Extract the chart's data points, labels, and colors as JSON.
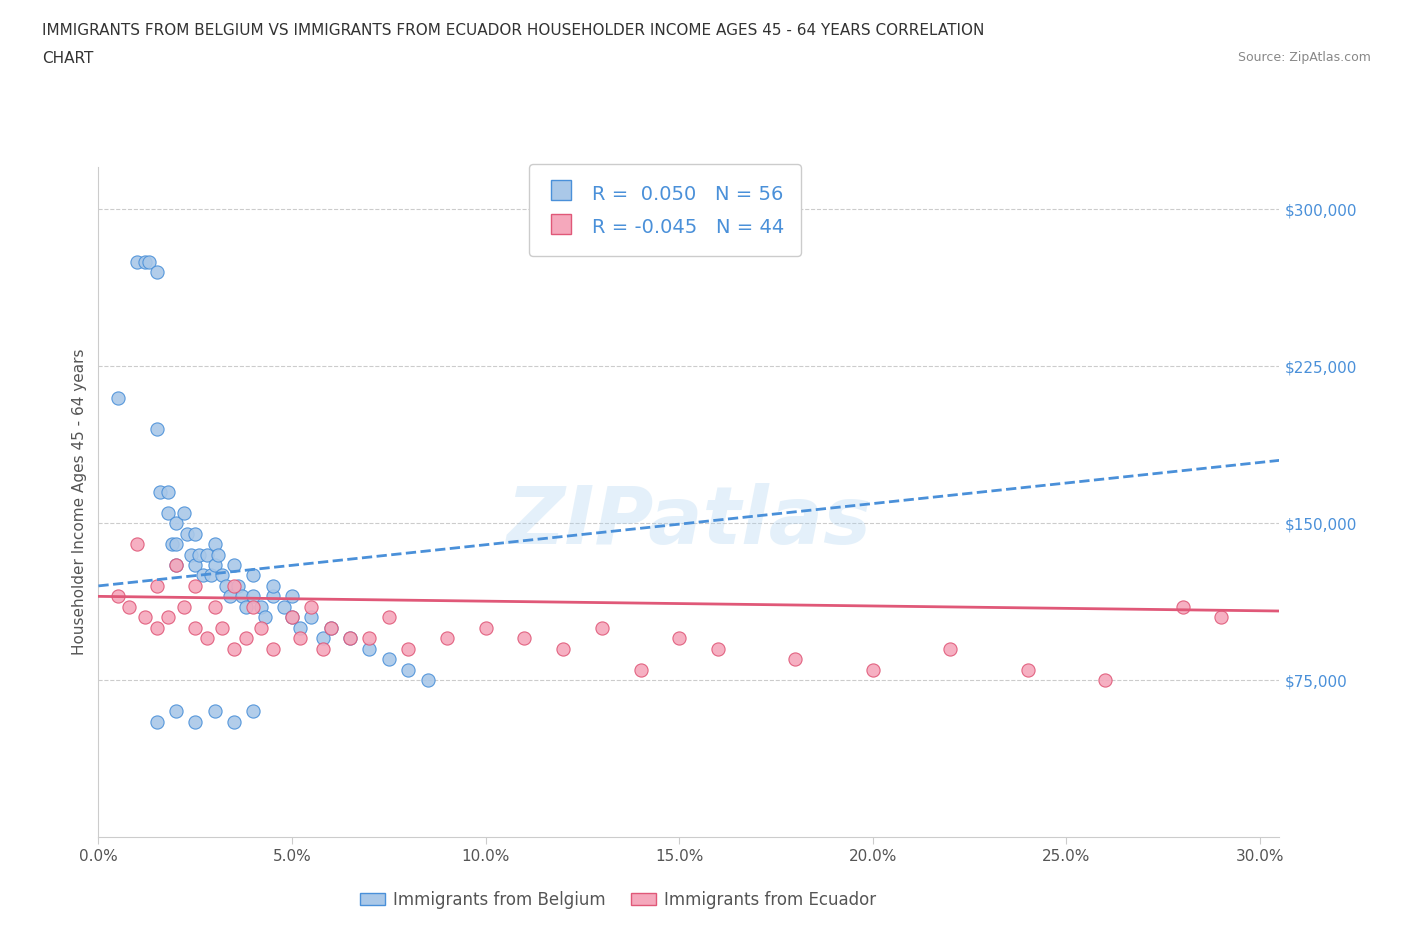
{
  "title_line1": "IMMIGRANTS FROM BELGIUM VS IMMIGRANTS FROM ECUADOR HOUSEHOLDER INCOME AGES 45 - 64 YEARS CORRELATION",
  "title_line2": "CHART",
  "source_text": "Source: ZipAtlas.com",
  "ylabel": "Householder Income Ages 45 - 64 years",
  "xlim": [
    0.0,
    0.305
  ],
  "ylim": [
    0,
    320000
  ],
  "xtick_labels": [
    "0.0%",
    "5.0%",
    "10.0%",
    "15.0%",
    "20.0%",
    "25.0%",
    "30.0%"
  ],
  "xtick_values": [
    0.0,
    0.05,
    0.1,
    0.15,
    0.2,
    0.25,
    0.3
  ],
  "ytick_labels": [
    "$75,000",
    "$150,000",
    "$225,000",
    "$300,000"
  ],
  "ytick_values": [
    75000,
    150000,
    225000,
    300000
  ],
  "r_belgium": 0.05,
  "n_belgium": 56,
  "r_ecuador": -0.045,
  "n_ecuador": 44,
  "color_belgium": "#aac8e8",
  "color_ecuador": "#f5a8bc",
  "line_color_belgium": "#4a90d9",
  "line_color_ecuador": "#e05878",
  "background_color": "#ffffff",
  "grid_color": "#cccccc",
  "belgium_x": [
    0.005,
    0.01,
    0.012,
    0.013,
    0.015,
    0.015,
    0.016,
    0.018,
    0.018,
    0.019,
    0.02,
    0.02,
    0.02,
    0.022,
    0.023,
    0.024,
    0.025,
    0.025,
    0.026,
    0.027,
    0.028,
    0.029,
    0.03,
    0.03,
    0.031,
    0.032,
    0.033,
    0.034,
    0.035,
    0.036,
    0.037,
    0.038,
    0.04,
    0.04,
    0.042,
    0.043,
    0.045,
    0.045,
    0.048,
    0.05,
    0.05,
    0.052,
    0.055,
    0.058,
    0.06,
    0.065,
    0.07,
    0.075,
    0.08,
    0.085,
    0.015,
    0.02,
    0.025,
    0.03,
    0.035,
    0.04
  ],
  "belgium_y": [
    210000,
    275000,
    275000,
    275000,
    270000,
    195000,
    165000,
    155000,
    165000,
    140000,
    150000,
    140000,
    130000,
    155000,
    145000,
    135000,
    130000,
    145000,
    135000,
    125000,
    135000,
    125000,
    140000,
    130000,
    135000,
    125000,
    120000,
    115000,
    130000,
    120000,
    115000,
    110000,
    125000,
    115000,
    110000,
    105000,
    115000,
    120000,
    110000,
    115000,
    105000,
    100000,
    105000,
    95000,
    100000,
    95000,
    90000,
    85000,
    80000,
    75000,
    55000,
    60000,
    55000,
    60000,
    55000,
    60000
  ],
  "ecuador_x": [
    0.005,
    0.008,
    0.01,
    0.012,
    0.015,
    0.015,
    0.018,
    0.02,
    0.022,
    0.025,
    0.025,
    0.028,
    0.03,
    0.032,
    0.035,
    0.035,
    0.038,
    0.04,
    0.042,
    0.045,
    0.05,
    0.052,
    0.055,
    0.058,
    0.06,
    0.065,
    0.07,
    0.075,
    0.08,
    0.09,
    0.1,
    0.11,
    0.12,
    0.13,
    0.14,
    0.15,
    0.16,
    0.18,
    0.2,
    0.22,
    0.24,
    0.26,
    0.28,
    0.29
  ],
  "ecuador_y": [
    115000,
    110000,
    140000,
    105000,
    120000,
    100000,
    105000,
    130000,
    110000,
    120000,
    100000,
    95000,
    110000,
    100000,
    120000,
    90000,
    95000,
    110000,
    100000,
    90000,
    105000,
    95000,
    110000,
    90000,
    100000,
    95000,
    95000,
    105000,
    90000,
    95000,
    100000,
    95000,
    90000,
    100000,
    80000,
    95000,
    90000,
    85000,
    80000,
    90000,
    80000,
    75000,
    110000,
    105000
  ]
}
